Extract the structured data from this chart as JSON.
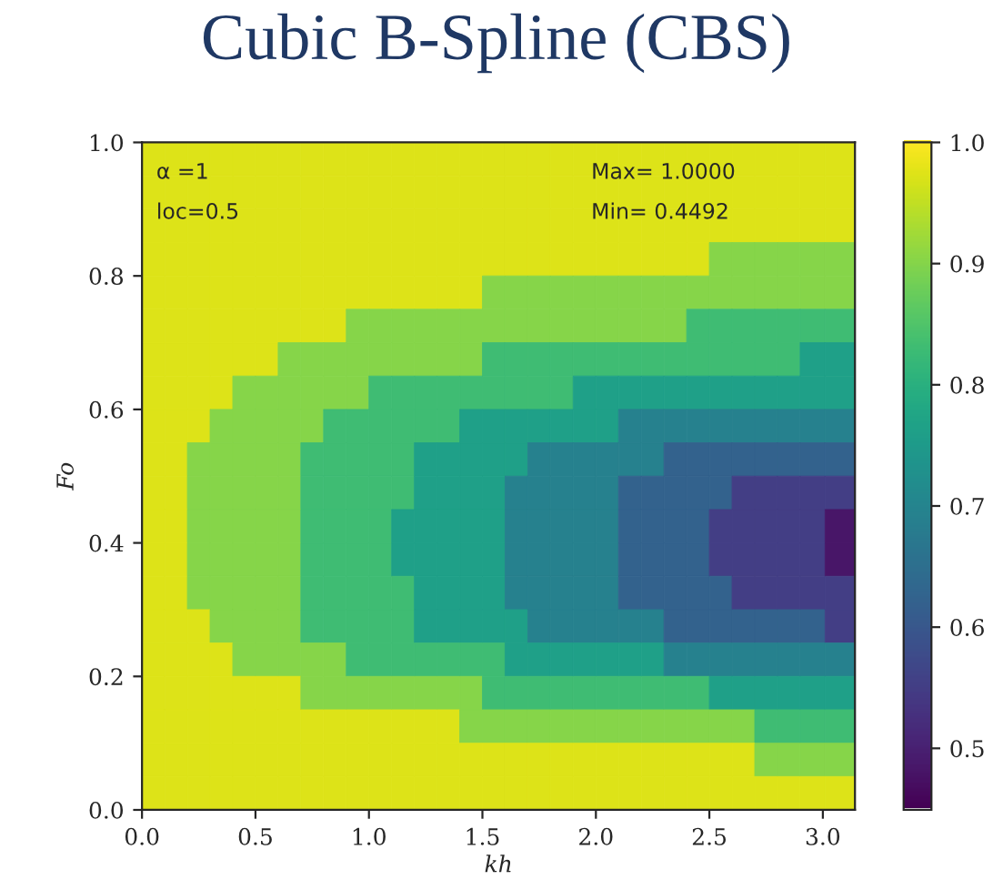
{
  "chart_data": {
    "type": "heatmap",
    "title": "Cubic B-Spline (CBS)",
    "xlabel": "kh",
    "ylabel": "Fo",
    "annotations": [
      "α =1",
      "loc=0.5",
      "Max= 1.0000",
      "Min= 0.4492"
    ],
    "x": [
      0.05,
      0.15,
      0.25,
      0.35,
      0.45,
      0.55,
      0.65,
      0.75,
      0.85,
      0.95,
      1.05,
      1.15,
      1.25,
      1.35,
      1.45,
      1.55,
      1.65,
      1.75,
      1.85,
      1.95,
      2.05,
      2.15,
      2.25,
      2.35,
      2.45,
      2.55,
      2.65,
      2.75,
      2.85,
      2.95,
      3.07
    ],
    "y": [
      0.975,
      0.925,
      0.875,
      0.825,
      0.775,
      0.725,
      0.675,
      0.625,
      0.575,
      0.525,
      0.475,
      0.425,
      0.375,
      0.325,
      0.275,
      0.225,
      0.175,
      0.125,
      0.075,
      0.025
    ],
    "cells": [
      [
        0.97,
        0.97,
        0.97,
        0.97,
        0.97,
        0.97,
        0.97,
        0.97,
        0.97,
        0.97,
        0.97,
        0.97,
        0.97,
        0.97,
        0.97,
        0.97,
        0.97,
        0.97,
        0.97,
        0.97,
        0.97,
        0.97,
        0.97,
        0.97,
        0.97,
        0.97,
        0.97,
        0.97,
        0.97,
        0.97,
        0.97
      ],
      [
        0.97,
        0.97,
        0.97,
        0.97,
        0.97,
        0.97,
        0.97,
        0.97,
        0.97,
        0.97,
        0.97,
        0.97,
        0.97,
        0.97,
        0.97,
        0.97,
        0.97,
        0.97,
        0.97,
        0.97,
        0.97,
        0.97,
        0.97,
        0.97,
        0.97,
        0.97,
        0.97,
        0.97,
        0.97,
        0.97,
        0.97
      ],
      [
        0.97,
        0.97,
        0.97,
        0.97,
        0.97,
        0.97,
        0.97,
        0.97,
        0.97,
        0.97,
        0.97,
        0.97,
        0.97,
        0.97,
        0.97,
        0.97,
        0.97,
        0.97,
        0.97,
        0.97,
        0.97,
        0.97,
        0.97,
        0.97,
        0.97,
        0.97,
        0.97,
        0.97,
        0.97,
        0.97,
        0.97
      ],
      [
        0.97,
        0.97,
        0.97,
        0.97,
        0.97,
        0.97,
        0.97,
        0.97,
        0.97,
        0.97,
        0.97,
        0.97,
        0.97,
        0.97,
        0.97,
        0.97,
        0.97,
        0.97,
        0.97,
        0.97,
        0.97,
        0.97,
        0.97,
        0.97,
        0.97,
        0.9,
        0.9,
        0.9,
        0.9,
        0.9,
        0.9
      ],
      [
        0.97,
        0.97,
        0.97,
        0.97,
        0.97,
        0.97,
        0.97,
        0.97,
        0.97,
        0.97,
        0.97,
        0.97,
        0.97,
        0.97,
        0.97,
        0.9,
        0.9,
        0.9,
        0.9,
        0.9,
        0.9,
        0.9,
        0.9,
        0.9,
        0.9,
        0.9,
        0.9,
        0.9,
        0.9,
        0.9,
        0.9
      ],
      [
        0.97,
        0.97,
        0.97,
        0.97,
        0.97,
        0.97,
        0.97,
        0.97,
        0.97,
        0.9,
        0.9,
        0.9,
        0.9,
        0.9,
        0.9,
        0.9,
        0.9,
        0.9,
        0.9,
        0.9,
        0.9,
        0.9,
        0.9,
        0.9,
        0.83,
        0.83,
        0.83,
        0.83,
        0.83,
        0.83,
        0.83
      ],
      [
        0.97,
        0.97,
        0.97,
        0.97,
        0.97,
        0.97,
        0.9,
        0.9,
        0.9,
        0.9,
        0.9,
        0.9,
        0.9,
        0.9,
        0.9,
        0.83,
        0.83,
        0.83,
        0.83,
        0.83,
        0.83,
        0.83,
        0.83,
        0.83,
        0.83,
        0.83,
        0.83,
        0.83,
        0.83,
        0.76,
        0.76
      ],
      [
        0.97,
        0.97,
        0.97,
        0.97,
        0.9,
        0.9,
        0.9,
        0.9,
        0.9,
        0.9,
        0.83,
        0.83,
        0.83,
        0.83,
        0.83,
        0.83,
        0.83,
        0.83,
        0.83,
        0.76,
        0.76,
        0.76,
        0.76,
        0.76,
        0.76,
        0.76,
        0.76,
        0.76,
        0.76,
        0.76,
        0.76
      ],
      [
        0.97,
        0.97,
        0.97,
        0.9,
        0.9,
        0.9,
        0.9,
        0.9,
        0.83,
        0.83,
        0.83,
        0.83,
        0.83,
        0.83,
        0.76,
        0.76,
        0.76,
        0.76,
        0.76,
        0.76,
        0.76,
        0.69,
        0.69,
        0.69,
        0.69,
        0.69,
        0.69,
        0.69,
        0.69,
        0.69,
        0.69
      ],
      [
        0.97,
        0.97,
        0.9,
        0.9,
        0.9,
        0.9,
        0.9,
        0.83,
        0.83,
        0.83,
        0.83,
        0.83,
        0.76,
        0.76,
        0.76,
        0.76,
        0.76,
        0.69,
        0.69,
        0.69,
        0.69,
        0.69,
        0.69,
        0.62,
        0.62,
        0.62,
        0.62,
        0.62,
        0.62,
        0.62,
        0.62
      ],
      [
        0.97,
        0.97,
        0.9,
        0.9,
        0.9,
        0.9,
        0.9,
        0.83,
        0.83,
        0.83,
        0.83,
        0.83,
        0.76,
        0.76,
        0.76,
        0.76,
        0.69,
        0.69,
        0.69,
        0.69,
        0.69,
        0.62,
        0.62,
        0.62,
        0.62,
        0.62,
        0.55,
        0.55,
        0.55,
        0.55,
        0.55
      ],
      [
        0.97,
        0.97,
        0.9,
        0.9,
        0.9,
        0.9,
        0.9,
        0.83,
        0.83,
        0.83,
        0.83,
        0.76,
        0.76,
        0.76,
        0.76,
        0.76,
        0.69,
        0.69,
        0.69,
        0.69,
        0.69,
        0.62,
        0.62,
        0.62,
        0.62,
        0.55,
        0.55,
        0.55,
        0.55,
        0.55,
        0.48
      ],
      [
        0.97,
        0.97,
        0.9,
        0.9,
        0.9,
        0.9,
        0.9,
        0.83,
        0.83,
        0.83,
        0.83,
        0.76,
        0.76,
        0.76,
        0.76,
        0.76,
        0.69,
        0.69,
        0.69,
        0.69,
        0.69,
        0.62,
        0.62,
        0.62,
        0.62,
        0.55,
        0.55,
        0.55,
        0.55,
        0.55,
        0.48
      ],
      [
        0.97,
        0.97,
        0.9,
        0.9,
        0.9,
        0.9,
        0.9,
        0.83,
        0.83,
        0.83,
        0.83,
        0.83,
        0.76,
        0.76,
        0.76,
        0.76,
        0.69,
        0.69,
        0.69,
        0.69,
        0.69,
        0.62,
        0.62,
        0.62,
        0.62,
        0.62,
        0.55,
        0.55,
        0.55,
        0.55,
        0.55
      ],
      [
        0.97,
        0.97,
        0.97,
        0.9,
        0.9,
        0.9,
        0.9,
        0.83,
        0.83,
        0.83,
        0.83,
        0.83,
        0.76,
        0.76,
        0.76,
        0.76,
        0.76,
        0.69,
        0.69,
        0.69,
        0.69,
        0.69,
        0.69,
        0.62,
        0.62,
        0.62,
        0.62,
        0.62,
        0.62,
        0.62,
        0.55
      ],
      [
        0.97,
        0.97,
        0.97,
        0.97,
        0.9,
        0.9,
        0.9,
        0.9,
        0.9,
        0.83,
        0.83,
        0.83,
        0.83,
        0.83,
        0.83,
        0.83,
        0.76,
        0.76,
        0.76,
        0.76,
        0.76,
        0.76,
        0.76,
        0.69,
        0.69,
        0.69,
        0.69,
        0.69,
        0.69,
        0.69,
        0.69
      ],
      [
        0.97,
        0.97,
        0.97,
        0.97,
        0.97,
        0.97,
        0.97,
        0.9,
        0.9,
        0.9,
        0.9,
        0.9,
        0.9,
        0.9,
        0.9,
        0.83,
        0.83,
        0.83,
        0.83,
        0.83,
        0.83,
        0.83,
        0.83,
        0.83,
        0.83,
        0.76,
        0.76,
        0.76,
        0.76,
        0.76,
        0.76
      ],
      [
        0.97,
        0.97,
        0.97,
        0.97,
        0.97,
        0.97,
        0.97,
        0.97,
        0.97,
        0.97,
        0.97,
        0.97,
        0.97,
        0.97,
        0.9,
        0.9,
        0.9,
        0.9,
        0.9,
        0.9,
        0.9,
        0.9,
        0.9,
        0.9,
        0.9,
        0.9,
        0.9,
        0.83,
        0.83,
        0.83,
        0.83
      ],
      [
        0.97,
        0.97,
        0.97,
        0.97,
        0.97,
        0.97,
        0.97,
        0.97,
        0.97,
        0.97,
        0.97,
        0.97,
        0.97,
        0.97,
        0.97,
        0.97,
        0.97,
        0.97,
        0.97,
        0.97,
        0.97,
        0.97,
        0.97,
        0.97,
        0.97,
        0.97,
        0.97,
        0.9,
        0.9,
        0.9,
        0.9
      ],
      [
        0.97,
        0.97,
        0.97,
        0.97,
        0.97,
        0.97,
        0.97,
        0.97,
        0.97,
        0.97,
        0.97,
        0.97,
        0.97,
        0.97,
        0.97,
        0.97,
        0.97,
        0.97,
        0.97,
        0.97,
        0.97,
        0.97,
        0.97,
        0.97,
        0.97,
        0.97,
        0.97,
        0.97,
        0.97,
        0.97,
        0.97
      ]
    ],
    "xlim": [
      0,
      3.1416
    ],
    "ylim": [
      0,
      1.0
    ],
    "xticks": [
      {
        "value": 0,
        "label": "0.0"
      },
      {
        "value": 0.5,
        "label": "0.5"
      },
      {
        "value": 1,
        "label": "1.0"
      },
      {
        "value": 1.5,
        "label": "1.5"
      },
      {
        "value": 2,
        "label": "2.0"
      },
      {
        "value": 2.5,
        "label": "2.5"
      },
      {
        "value": 3,
        "label": "3.0"
      }
    ],
    "yticks": [
      {
        "value": 0,
        "label": "0.0"
      },
      {
        "value": 0.2,
        "label": "0.2"
      },
      {
        "value": 0.4,
        "label": "0.4"
      },
      {
        "value": 0.6,
        "label": "0.6"
      },
      {
        "value": 0.8,
        "label": "0.8"
      },
      {
        "value": 1,
        "label": "1.0"
      }
    ],
    "clim": [
      0.4492,
      1.0
    ],
    "cticks": [
      0.5,
      0.6,
      0.7,
      0.8,
      0.9,
      {
        "value": 1.0,
        "label": "1.0"
      }
    ]
  }
}
